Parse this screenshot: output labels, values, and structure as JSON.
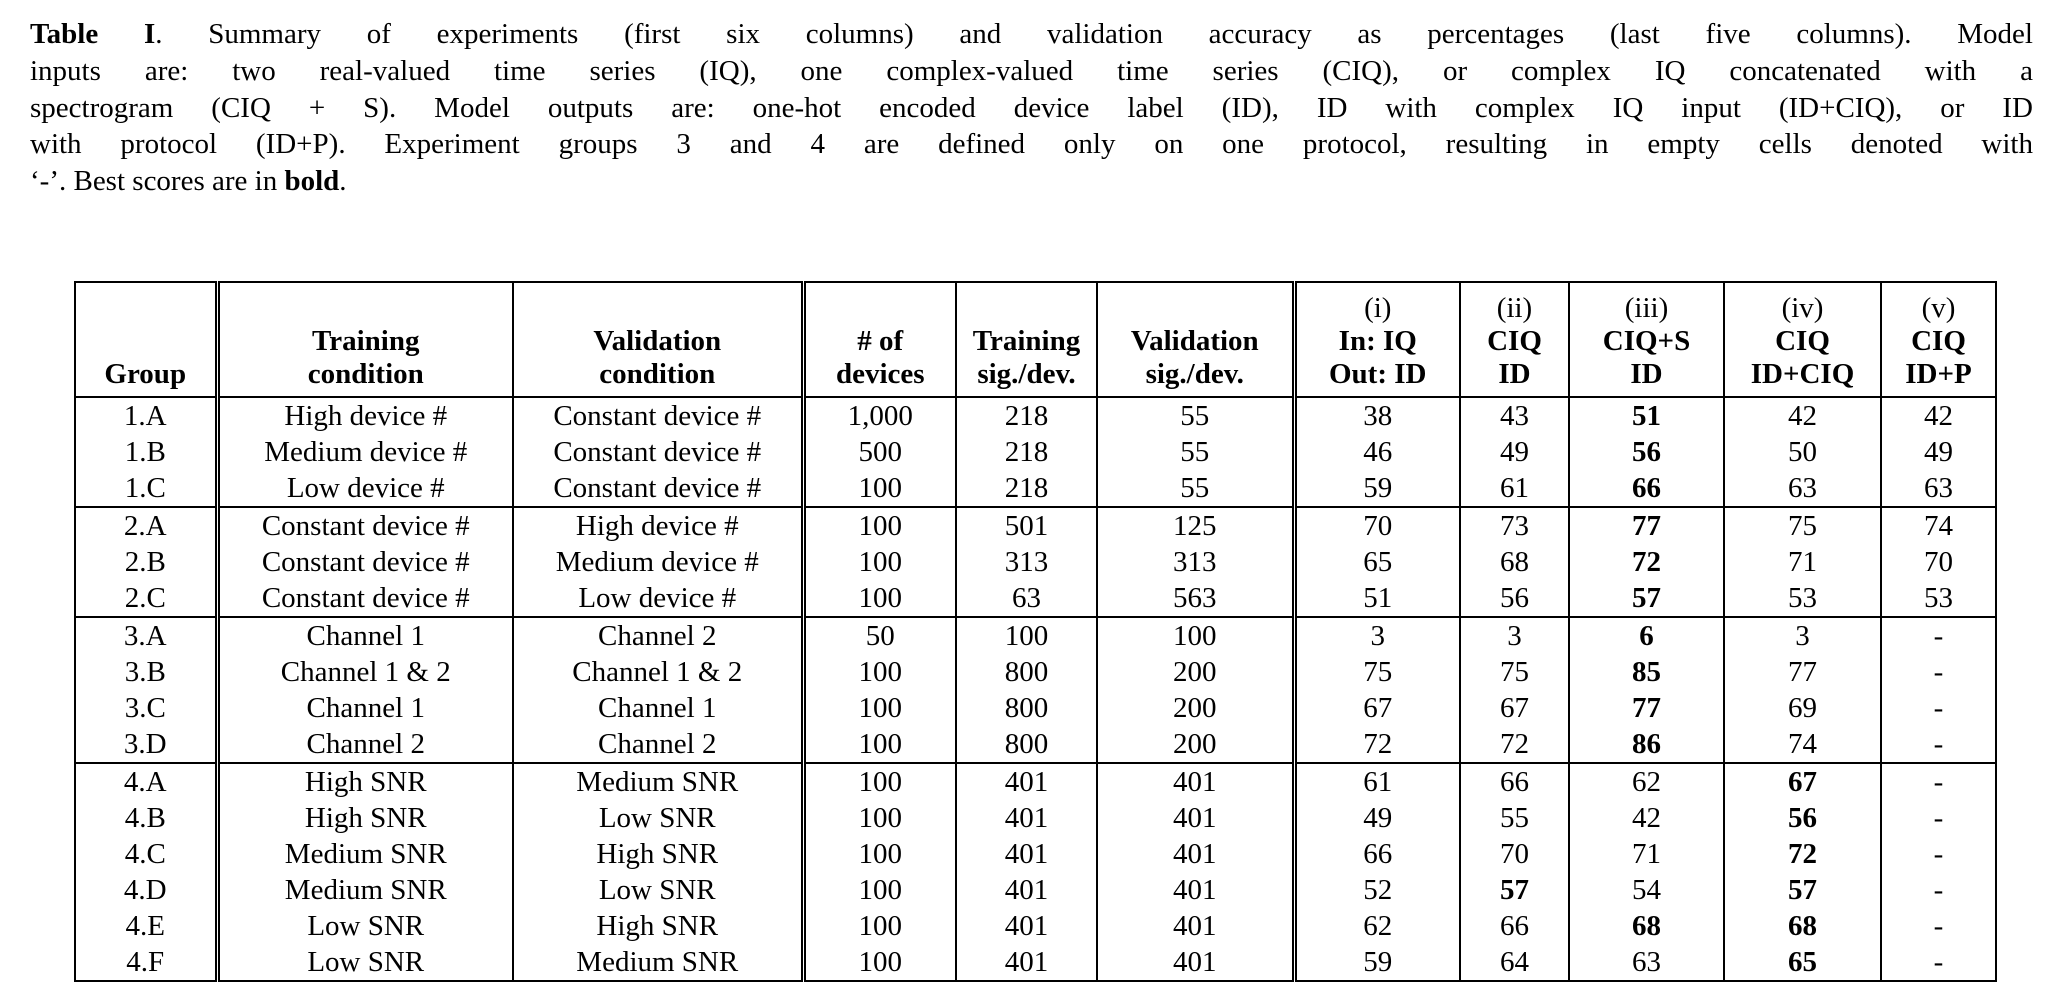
{
  "caption": {
    "lines": [
      {
        "justify_last": true,
        "parts": [
          {
            "t": "Table I",
            "b": true
          },
          {
            "t": ". Summary of experiments (first six columns) and validation accuracy as percentages (last five columns). Model",
            "b": false
          }
        ]
      },
      {
        "justify_last": true,
        "parts": [
          {
            "t": "inputs are: two real-valued time series (IQ), one complex-valued time series (CIQ), or complex IQ concatenated with a",
            "b": false
          }
        ]
      },
      {
        "justify_last": true,
        "parts": [
          {
            "t": "spectrogram (CIQ + S). Model outputs are: one-hot encoded device label (ID), ID with complex IQ input (ID+CIQ), or ID",
            "b": false
          }
        ]
      },
      {
        "justify_last": true,
        "parts": [
          {
            "t": "with protocol (ID+P). Experiment groups 3 and 4 are defined only on one protocol, resulting in empty cells denoted with",
            "b": false
          }
        ]
      },
      {
        "justify_last": false,
        "parts": [
          {
            "t": "‘-’. Best scores are in ",
            "b": false
          },
          {
            "t": "bold",
            "b": true
          },
          {
            "t": ".",
            "b": false
          }
        ]
      }
    ]
  },
  "table": {
    "columns": [
      {
        "id": "group",
        "numeral": null,
        "lines": [
          "Group"
        ],
        "rule": "none"
      },
      {
        "id": "training",
        "numeral": null,
        "lines": [
          "Training",
          "condition"
        ],
        "rule": "double"
      },
      {
        "id": "validation",
        "numeral": null,
        "lines": [
          "Validation",
          "condition"
        ],
        "rule": "single"
      },
      {
        "id": "devices",
        "numeral": null,
        "lines": [
          "# of",
          "devices"
        ],
        "rule": "double"
      },
      {
        "id": "tsig",
        "numeral": null,
        "lines": [
          "Training",
          "sig./dev."
        ],
        "rule": "single"
      },
      {
        "id": "vsig",
        "numeral": null,
        "lines": [
          "Validation",
          "sig./dev."
        ],
        "rule": "single"
      },
      {
        "id": "i",
        "numeral": "(i)",
        "lines": [
          "In: IQ",
          "Out: ID"
        ],
        "rule": "double"
      },
      {
        "id": "ii",
        "numeral": "(ii)",
        "lines": [
          "CIQ",
          "ID"
        ],
        "rule": "single"
      },
      {
        "id": "iii",
        "numeral": "(iii)",
        "lines": [
          "CIQ+S",
          "ID"
        ],
        "rule": "single"
      },
      {
        "id": "iv",
        "numeral": "(iv)",
        "lines": [
          "CIQ",
          "ID+CIQ"
        ],
        "rule": "single"
      },
      {
        "id": "v",
        "numeral": "(v)",
        "lines": [
          "CIQ",
          "ID+P"
        ],
        "rule": "single"
      }
    ],
    "groups": [
      {
        "name": "group-1",
        "rows": [
          {
            "group": "1.A",
            "training": "High device #",
            "validation": "Constant device #",
            "devices": "1,000",
            "tsig": "218",
            "vsig": "55",
            "acc": [
              "38",
              "43",
              "51",
              "42",
              "42"
            ],
            "bold": [
              2
            ]
          },
          {
            "group": "1.B",
            "training": "Medium device #",
            "validation": "Constant device #",
            "devices": "500",
            "tsig": "218",
            "vsig": "55",
            "acc": [
              "46",
              "49",
              "56",
              "50",
              "49"
            ],
            "bold": [
              2
            ]
          },
          {
            "group": "1.C",
            "training": "Low device #",
            "validation": "Constant device #",
            "devices": "100",
            "tsig": "218",
            "vsig": "55",
            "acc": [
              "59",
              "61",
              "66",
              "63",
              "63"
            ],
            "bold": [
              2
            ]
          }
        ]
      },
      {
        "name": "group-2",
        "rows": [
          {
            "group": "2.A",
            "training": "Constant device #",
            "validation": "High device #",
            "devices": "100",
            "tsig": "501",
            "vsig": "125",
            "acc": [
              "70",
              "73",
              "77",
              "75",
              "74"
            ],
            "bold": [
              2
            ]
          },
          {
            "group": "2.B",
            "training": "Constant device #",
            "validation": "Medium device #",
            "devices": "100",
            "tsig": "313",
            "vsig": "313",
            "acc": [
              "65",
              "68",
              "72",
              "71",
              "70"
            ],
            "bold": [
              2
            ]
          },
          {
            "group": "2.C",
            "training": "Constant device #",
            "validation": "Low device #",
            "devices": "100",
            "tsig": "63",
            "vsig": "563",
            "acc": [
              "51",
              "56",
              "57",
              "53",
              "53"
            ],
            "bold": [
              2
            ]
          }
        ]
      },
      {
        "name": "group-3",
        "rows": [
          {
            "group": "3.A",
            "training": "Channel 1",
            "validation": "Channel 2",
            "devices": "50",
            "tsig": "100",
            "vsig": "100",
            "acc": [
              "3",
              "3",
              "6",
              "3",
              "-"
            ],
            "bold": [
              2
            ]
          },
          {
            "group": "3.B",
            "training": "Channel 1 & 2",
            "validation": "Channel 1 & 2",
            "devices": "100",
            "tsig": "800",
            "vsig": "200",
            "acc": [
              "75",
              "75",
              "85",
              "77",
              "-"
            ],
            "bold": [
              2
            ]
          },
          {
            "group": "3.C",
            "training": "Channel 1",
            "validation": "Channel 1",
            "devices": "100",
            "tsig": "800",
            "vsig": "200",
            "acc": [
              "67",
              "67",
              "77",
              "69",
              "-"
            ],
            "bold": [
              2
            ]
          },
          {
            "group": "3.D",
            "training": "Channel 2",
            "validation": "Channel 2",
            "devices": "100",
            "tsig": "800",
            "vsig": "200",
            "acc": [
              "72",
              "72",
              "86",
              "74",
              "-"
            ],
            "bold": [
              2
            ]
          }
        ]
      },
      {
        "name": "group-4",
        "rows": [
          {
            "group": "4.A",
            "training": "High SNR",
            "validation": "Medium SNR",
            "devices": "100",
            "tsig": "401",
            "vsig": "401",
            "acc": [
              "61",
              "66",
              "62",
              "67",
              "-"
            ],
            "bold": [
              3
            ]
          },
          {
            "group": "4.B",
            "training": "High SNR",
            "validation": "Low SNR",
            "devices": "100",
            "tsig": "401",
            "vsig": "401",
            "acc": [
              "49",
              "55",
              "42",
              "56",
              "-"
            ],
            "bold": [
              3
            ]
          },
          {
            "group": "4.C",
            "training": "Medium SNR",
            "validation": "High SNR",
            "devices": "100",
            "tsig": "401",
            "vsig": "401",
            "acc": [
              "66",
              "70",
              "71",
              "72",
              "-"
            ],
            "bold": [
              3
            ]
          },
          {
            "group": "4.D",
            "training": "Medium SNR",
            "validation": "Low SNR",
            "devices": "100",
            "tsig": "401",
            "vsig": "401",
            "acc": [
              "52",
              "57",
              "54",
              "57",
              "-"
            ],
            "bold": [
              1,
              3
            ]
          },
          {
            "group": "4.E",
            "training": "Low SNR",
            "validation": "High SNR",
            "devices": "100",
            "tsig": "401",
            "vsig": "401",
            "acc": [
              "62",
              "66",
              "68",
              "68",
              "-"
            ],
            "bold": [
              2,
              3
            ]
          },
          {
            "group": "4.F",
            "training": "Low SNR",
            "validation": "Medium SNR",
            "devices": "100",
            "tsig": "401",
            "vsig": "401",
            "acc": [
              "59",
              "64",
              "63",
              "65",
              "-"
            ],
            "bold": [
              3
            ]
          }
        ]
      }
    ]
  }
}
